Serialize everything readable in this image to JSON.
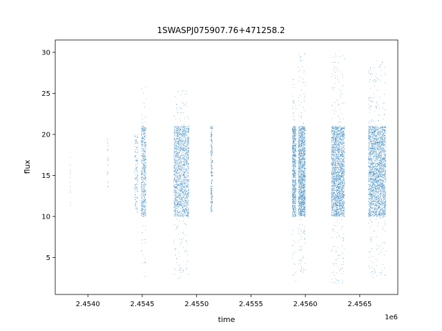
{
  "chart_data": {
    "type": "scatter",
    "title": "1SWASPJ075907.76+471258.2",
    "xlabel": "time",
    "ylabel": "flux",
    "x_offset_label": "1e6",
    "xlim": [
      2453700,
      2456850
    ],
    "ylim": [
      0.5,
      31.5
    ],
    "x_ticks": [
      2454000,
      2454500,
      2455000,
      2455500,
      2456000,
      2456500
    ],
    "x_tick_labels": [
      "2.4540",
      "2.4545",
      "2.4550",
      "2.4555",
      "2.4560",
      "2.4565"
    ],
    "y_ticks": [
      5,
      10,
      15,
      20,
      25,
      30
    ],
    "y_tick_labels": [
      "5",
      "10",
      "15",
      "20",
      "25",
      "30"
    ],
    "grid": false,
    "marker_color": "#1f77b4",
    "series": [
      {
        "segments": [
          {
            "x_start": 2453835,
            "x_end": 2453840,
            "y_low": 10.5,
            "y_high": 17.8,
            "density": 12
          },
          {
            "x_start": 2454180,
            "x_end": 2454185,
            "y_low": 13.5,
            "y_high": 20.3,
            "density": 25
          },
          {
            "x_start": 2454430,
            "x_end": 2454460,
            "y_low": 10.5,
            "y_high": 20.0,
            "density": 150
          },
          {
            "x_start": 2454490,
            "x_end": 2454535,
            "y_low": 2.6,
            "y_high": 25.8,
            "density": 600
          },
          {
            "x_start": 2454790,
            "x_end": 2454930,
            "y_low": 2.3,
            "y_high": 25.6,
            "density": 1800
          },
          {
            "x_start": 2455130,
            "x_end": 2455145,
            "y_low": 10.5,
            "y_high": 21.0,
            "density": 250
          },
          {
            "x_start": 2455880,
            "x_end": 2455915,
            "y_low": 2.0,
            "y_high": 27.5,
            "density": 800
          },
          {
            "x_start": 2455935,
            "x_end": 2456000,
            "y_low": 2.8,
            "y_high": 30.0,
            "density": 1500
          },
          {
            "x_start": 2456240,
            "x_end": 2456360,
            "y_low": 1.8,
            "y_high": 30.0,
            "density": 2200
          },
          {
            "x_start": 2456580,
            "x_end": 2456740,
            "y_low": 2.5,
            "y_high": 29.0,
            "density": 2600
          }
        ]
      }
    ]
  }
}
